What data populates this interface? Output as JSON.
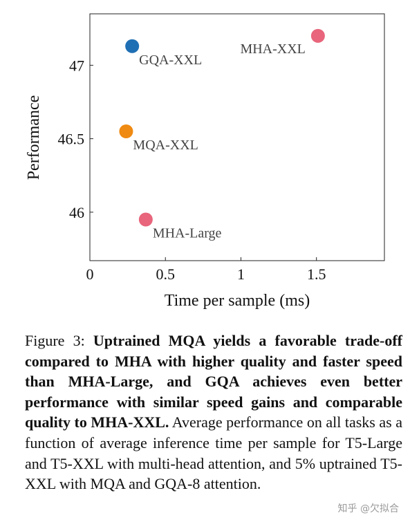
{
  "chart_data": {
    "type": "scatter",
    "xlabel": "Time per sample (ms)",
    "ylabel": "Performance",
    "xlim": [
      0,
      1.95
    ],
    "ylim": [
      45.67,
      47.35
    ],
    "xticks": [
      0,
      0.5,
      1,
      1.5
    ],
    "xtick_labels": [
      "0",
      "0.5",
      "1",
      "1.5"
    ],
    "yticks": [
      46,
      46.5,
      47
    ],
    "ytick_labels": [
      "46",
      "46.5",
      "47"
    ],
    "grid": false,
    "points": [
      {
        "label": "MHA-XXL",
        "x": 1.51,
        "y": 47.2,
        "color": "#e8657b",
        "label_pos": "left"
      },
      {
        "label": "GQA-XXL",
        "x": 0.28,
        "y": 47.13,
        "color": "#1f6fb4",
        "label_pos": "below-right"
      },
      {
        "label": "MQA-XXL",
        "x": 0.24,
        "y": 46.55,
        "color": "#ef8a12",
        "label_pos": "below-right"
      },
      {
        "label": "MHA-Large",
        "x": 0.37,
        "y": 45.95,
        "color": "#e8657b",
        "label_pos": "below-right"
      }
    ]
  },
  "caption": {
    "prefix": "Figure 3: ",
    "bold": "Uptrained MQA yields a favorable trade-off compared to MHA with higher quality and faster speed than MHA-Large, and GQA achieves even better performance with similar speed gains and comparable quality to MHA-XXL.",
    "rest": " Average performance on all tasks as a function of average inference time per sample for T5-Large and T5-XXL with multi-head attention, and 5% uptrained T5-XXL with MQA and GQA-8 attention."
  },
  "watermark": "知乎 @欠拟合"
}
